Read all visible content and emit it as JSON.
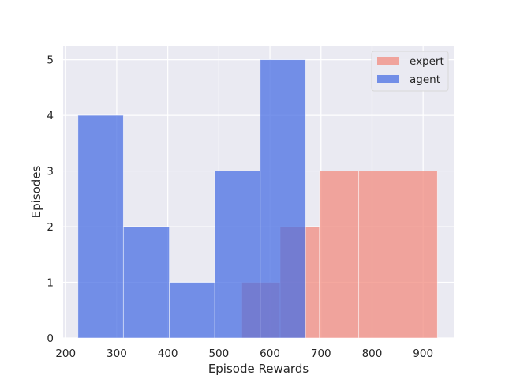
{
  "chart_data": {
    "type": "bar",
    "xlabel": "Episode Rewards",
    "ylabel": "Episodes",
    "xlim": [
      195,
      960
    ],
    "ylim": [
      0,
      5.25
    ],
    "x_ticks": [
      200,
      300,
      400,
      500,
      600,
      700,
      800,
      900
    ],
    "y_ticks": [
      0,
      1,
      2,
      3,
      4,
      5
    ],
    "grid": true,
    "legend_position": "top-right",
    "series": [
      {
        "name": "expert",
        "color": "#f28b7f",
        "bins": [
          {
            "x0": 545,
            "x1": 620,
            "count": 1
          },
          {
            "x0": 620,
            "x1": 697,
            "count": 2
          },
          {
            "x0": 697,
            "x1": 774,
            "count": 3
          },
          {
            "x0": 774,
            "x1": 851,
            "count": 3
          },
          {
            "x0": 851,
            "x1": 928,
            "count": 3
          }
        ]
      },
      {
        "name": "agent",
        "color": "#4a6fe3",
        "bins": [
          {
            "x0": 224,
            "x1": 313,
            "count": 4
          },
          {
            "x0": 313,
            "x1": 403,
            "count": 2
          },
          {
            "x0": 403,
            "x1": 492,
            "count": 1
          },
          {
            "x0": 492,
            "x1": 581,
            "count": 3
          },
          {
            "x0": 581,
            "x1": 670,
            "count": 5
          }
        ]
      }
    ]
  }
}
